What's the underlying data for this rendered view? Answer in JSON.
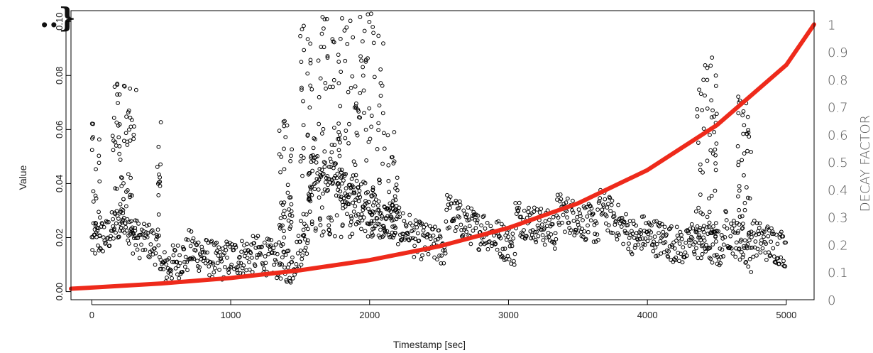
{
  "corner_mark": "..}",
  "chart_data": {
    "type": "scatter",
    "title": "",
    "xlabel": "Timestamp [sec]",
    "ylabel": "Value",
    "y2label": "DECAY FACTOR",
    "xlim": [
      -150,
      5200
    ],
    "ylim": [
      -0.003,
      0.104
    ],
    "y2lim": [
      0,
      1.05
    ],
    "grid": false,
    "x_ticks": [
      0,
      1000,
      2000,
      3000,
      4000,
      5000
    ],
    "x_tick_labels": [
      "0",
      "1000",
      "2000",
      "3000",
      "4000",
      "5000"
    ],
    "y_ticks": [
      0.0,
      0.02,
      0.04,
      0.06,
      0.08,
      0.1
    ],
    "y_tick_labels": [
      "0.00",
      "0.02",
      "0.04",
      "0.06",
      "0.08",
      "0.10"
    ],
    "y2_ticks": [
      0,
      0.1,
      0.2,
      0.3,
      0.4,
      0.5,
      0.6,
      0.7,
      0.8,
      0.9,
      1
    ],
    "y2_tick_labels": [
      "0",
      "0.1",
      "0.2",
      "0.3",
      "0.4",
      "0.5",
      "0.6",
      "0.7",
      "0.8",
      "0.9",
      "1"
    ],
    "scatter_series": {
      "marker": "open-circle",
      "color": "#000000",
      "segments": [
        {
          "x": [
            0,
            100
          ],
          "y": [
            0.018,
            0.021
          ]
        },
        {
          "x": [
            100,
            260
          ],
          "y": [
            0.02,
            0.03
          ]
        },
        {
          "x": [
            260,
            380
          ],
          "y": [
            0.022,
            0.018
          ]
        },
        {
          "x": [
            380,
            500
          ],
          "y": [
            0.02,
            0.015
          ]
        },
        {
          "x": [
            500,
            700
          ],
          "y": [
            0.008,
            0.014
          ]
        },
        {
          "x": [
            700,
            950
          ],
          "y": [
            0.016,
            0.01
          ]
        },
        {
          "x": [
            950,
            1200
          ],
          "y": [
            0.012,
            0.014
          ]
        },
        {
          "x": [
            1200,
            1420
          ],
          "y": [
            0.014,
            0.01
          ]
        },
        {
          "x": [
            1420,
            1560
          ],
          "y": [
            0.008,
            0.022
          ]
        },
        {
          "x": [
            1560,
            1800
          ],
          "y": [
            0.045,
            0.04
          ]
        },
        {
          "x": [
            1800,
            2050
          ],
          "y": [
            0.038,
            0.03
          ]
        },
        {
          "x": [
            2050,
            2300
          ],
          "y": [
            0.028,
            0.022
          ]
        },
        {
          "x": [
            2300,
            2550
          ],
          "y": [
            0.02,
            0.016
          ]
        },
        {
          "x": [
            2550,
            2800
          ],
          "y": [
            0.03,
            0.022
          ]
        },
        {
          "x": [
            2800,
            3050
          ],
          "y": [
            0.024,
            0.016
          ]
        },
        {
          "x": [
            3050,
            3350
          ],
          "y": [
            0.028,
            0.022
          ]
        },
        {
          "x": [
            3350,
            3650
          ],
          "y": [
            0.03,
            0.024
          ]
        },
        {
          "x": [
            3650,
            3950
          ],
          "y": [
            0.032,
            0.018
          ]
        },
        {
          "x": [
            3950,
            4300
          ],
          "y": [
            0.022,
            0.016
          ]
        },
        {
          "x": [
            4300,
            4550
          ],
          "y": [
            0.02,
            0.015
          ]
        },
        {
          "x": [
            4550,
            4750
          ],
          "y": [
            0.024,
            0.014
          ]
        },
        {
          "x": [
            4750,
            5000
          ],
          "y": [
            0.02,
            0.016
          ]
        }
      ],
      "spikes": [
        {
          "x": [
            0,
            60
          ],
          "ymax": 0.066
        },
        {
          "x": [
            150,
            320
          ],
          "ymax": 0.077
        },
        {
          "x": [
            470,
            500
          ],
          "ymax": 0.063
        },
        {
          "x": [
            1350,
            1450
          ],
          "ymax": 0.064
        },
        {
          "x": [
            1500,
            2100
          ],
          "ymax": 0.104
        },
        {
          "x": [
            2100,
            2200
          ],
          "ymax": 0.06
        },
        {
          "x": [
            4350,
            4500
          ],
          "ymax": 0.088
        },
        {
          "x": [
            4650,
            4750
          ],
          "ymax": 0.073
        }
      ]
    },
    "line_series": {
      "color": "#ee2a1b",
      "axis": "right",
      "x": [
        -150,
        0,
        500,
        1000,
        1500,
        2000,
        2500,
        3000,
        3500,
        4000,
        4500,
        5000,
        5200
      ],
      "y": [
        0.04,
        0.044,
        0.059,
        0.079,
        0.107,
        0.144,
        0.194,
        0.261,
        0.35,
        0.471,
        0.634,
        0.853,
        1.0
      ]
    }
  }
}
